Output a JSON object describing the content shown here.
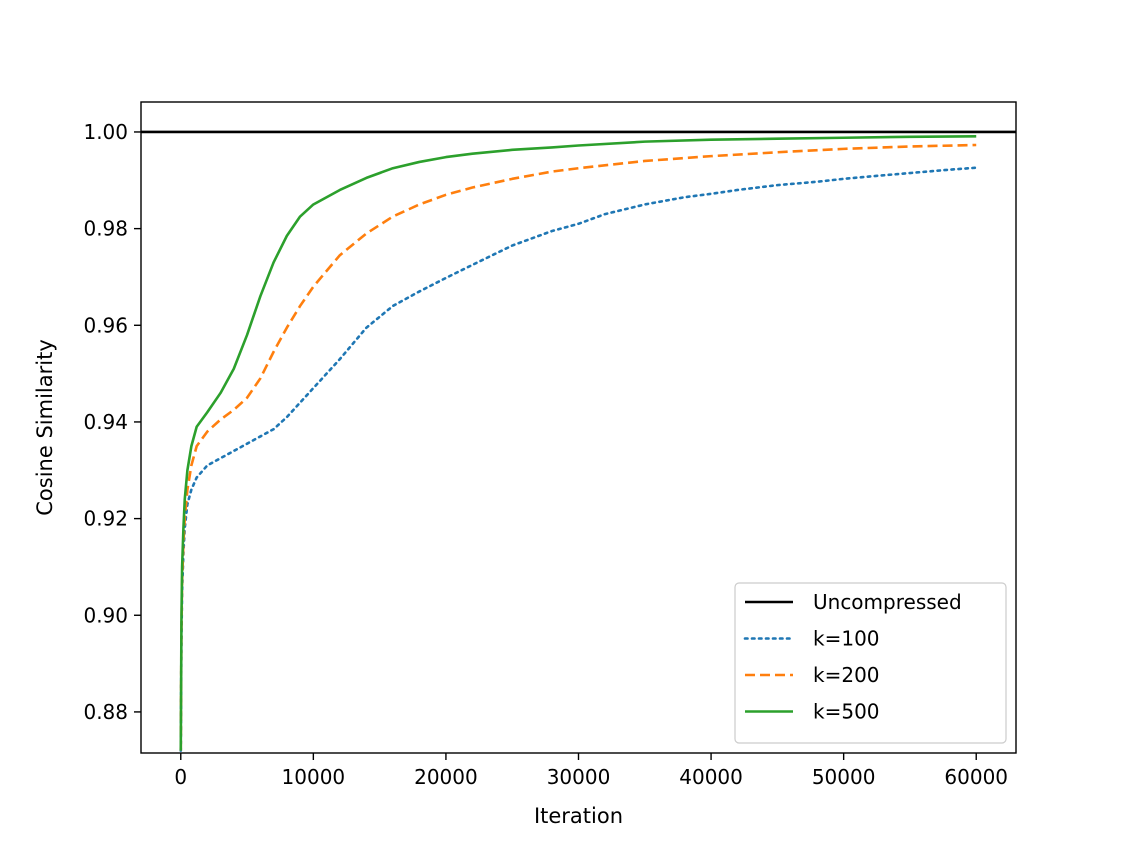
{
  "chart_data": {
    "type": "line",
    "title": "",
    "xlabel": "Iteration",
    "ylabel": "Cosine Similarity",
    "xlim": [
      -3000,
      63000
    ],
    "ylim": [
      0.8715,
      1.0062
    ],
    "xticks": [
      {
        "value": 0,
        "label": "0"
      },
      {
        "value": 10000,
        "label": "10000"
      },
      {
        "value": 20000,
        "label": "20000"
      },
      {
        "value": 30000,
        "label": "30000"
      },
      {
        "value": 40000,
        "label": "40000"
      },
      {
        "value": 50000,
        "label": "50000"
      },
      {
        "value": 60000,
        "label": "60000"
      }
    ],
    "yticks": [
      {
        "value": 0.88,
        "label": "0.88"
      },
      {
        "value": 0.9,
        "label": "0.90"
      },
      {
        "value": 0.92,
        "label": "0.92"
      },
      {
        "value": 0.94,
        "label": "0.94"
      },
      {
        "value": 0.96,
        "label": "0.96"
      },
      {
        "value": 0.98,
        "label": "0.98"
      },
      {
        "value": 1.0,
        "label": "1.00"
      }
    ],
    "grid": false,
    "legend_position": "lower-right",
    "series": [
      {
        "name": "Uncompressed",
        "color": "#000000",
        "style": "solid",
        "span": "full-axis",
        "points": [
          [
            -3000,
            1.0
          ],
          [
            63000,
            1.0
          ]
        ]
      },
      {
        "name": "k=100",
        "color": "#1f77b4",
        "style": "dotted",
        "points": [
          [
            0,
            0.872
          ],
          [
            50,
            0.895
          ],
          [
            100,
            0.905
          ],
          [
            200,
            0.913
          ],
          [
            300,
            0.918
          ],
          [
            500,
            0.923
          ],
          [
            800,
            0.926
          ],
          [
            1200,
            0.9285
          ],
          [
            2000,
            0.931
          ],
          [
            3000,
            0.9325
          ],
          [
            4000,
            0.934
          ],
          [
            5000,
            0.9355
          ],
          [
            6000,
            0.937
          ],
          [
            7000,
            0.9385
          ],
          [
            8000,
            0.941
          ],
          [
            9000,
            0.944
          ],
          [
            10000,
            0.947
          ],
          [
            12000,
            0.953
          ],
          [
            14000,
            0.9595
          ],
          [
            16000,
            0.964
          ],
          [
            18000,
            0.967
          ],
          [
            20000,
            0.9698
          ],
          [
            22000,
            0.9725
          ],
          [
            25000,
            0.9765
          ],
          [
            28000,
            0.9795
          ],
          [
            30000,
            0.981
          ],
          [
            32000,
            0.983
          ],
          [
            35000,
            0.985
          ],
          [
            38000,
            0.9865
          ],
          [
            40000,
            0.9872
          ],
          [
            42000,
            0.988
          ],
          [
            45000,
            0.989
          ],
          [
            48000,
            0.9897
          ],
          [
            50000,
            0.9903
          ],
          [
            52000,
            0.9908
          ],
          [
            55000,
            0.9915
          ],
          [
            58000,
            0.9922
          ],
          [
            60000,
            0.9926
          ]
        ]
      },
      {
        "name": "k=200",
        "color": "#ff7f0e",
        "style": "dashed",
        "points": [
          [
            0,
            0.872
          ],
          [
            50,
            0.897
          ],
          [
            100,
            0.907
          ],
          [
            200,
            0.915
          ],
          [
            300,
            0.92
          ],
          [
            500,
            0.926
          ],
          [
            800,
            0.931
          ],
          [
            1200,
            0.935
          ],
          [
            2000,
            0.938
          ],
          [
            3000,
            0.9405
          ],
          [
            4000,
            0.9425
          ],
          [
            5000,
            0.945
          ],
          [
            6000,
            0.949
          ],
          [
            7000,
            0.9545
          ],
          [
            8000,
            0.9595
          ],
          [
            9000,
            0.964
          ],
          [
            10000,
            0.968
          ],
          [
            12000,
            0.9745
          ],
          [
            14000,
            0.979
          ],
          [
            16000,
            0.9825
          ],
          [
            18000,
            0.985
          ],
          [
            20000,
            0.987
          ],
          [
            22000,
            0.9885
          ],
          [
            25000,
            0.9903
          ],
          [
            28000,
            0.9918
          ],
          [
            30000,
            0.9925
          ],
          [
            35000,
            0.994
          ],
          [
            40000,
            0.995
          ],
          [
            45000,
            0.9958
          ],
          [
            50000,
            0.9965
          ],
          [
            55000,
            0.997
          ],
          [
            60000,
            0.9973
          ]
        ]
      },
      {
        "name": "k=500",
        "color": "#2ca02c",
        "style": "solid",
        "points": [
          [
            0,
            0.872
          ],
          [
            50,
            0.899
          ],
          [
            100,
            0.91
          ],
          [
            200,
            0.918
          ],
          [
            300,
            0.924
          ],
          [
            500,
            0.93
          ],
          [
            800,
            0.935
          ],
          [
            1200,
            0.939
          ],
          [
            2000,
            0.942
          ],
          [
            3000,
            0.946
          ],
          [
            4000,
            0.951
          ],
          [
            5000,
            0.958
          ],
          [
            6000,
            0.966
          ],
          [
            7000,
            0.973
          ],
          [
            8000,
            0.9785
          ],
          [
            9000,
            0.9825
          ],
          [
            10000,
            0.985
          ],
          [
            12000,
            0.988
          ],
          [
            14000,
            0.9905
          ],
          [
            16000,
            0.9925
          ],
          [
            18000,
            0.9938
          ],
          [
            20000,
            0.9948
          ],
          [
            22000,
            0.9955
          ],
          [
            25000,
            0.9963
          ],
          [
            28000,
            0.9968
          ],
          [
            30000,
            0.9972
          ],
          [
            35000,
            0.998
          ],
          [
            40000,
            0.9984
          ],
          [
            45000,
            0.9986
          ],
          [
            50000,
            0.9988
          ],
          [
            55000,
            0.999
          ],
          [
            60000,
            0.9991
          ]
        ]
      }
    ]
  }
}
